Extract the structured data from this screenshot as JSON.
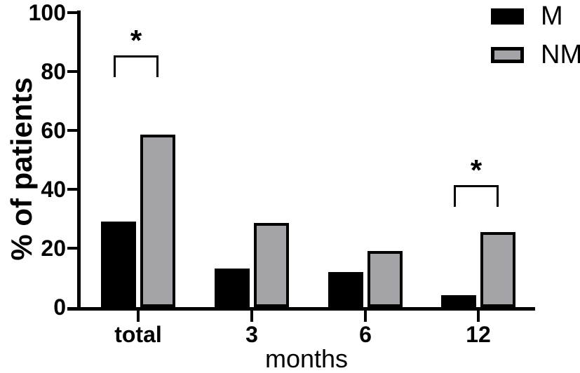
{
  "chart_data": {
    "type": "bar",
    "title": "",
    "categories": [
      "total",
      "3",
      "6",
      "12"
    ],
    "series": [
      {
        "name": "M",
        "color": "#000000",
        "values": [
          29,
          13,
          12,
          4
        ]
      },
      {
        "name": "NM",
        "color": "#a4a4a8",
        "values": [
          58.5,
          28.5,
          19,
          25.5
        ]
      }
    ],
    "xlabel": "months",
    "ylabel": "% of patients",
    "ylim": [
      0,
      100
    ],
    "yticks": [
      0,
      20,
      40,
      60,
      80,
      100
    ],
    "grid": false,
    "legend_position": "top-right",
    "bar_border_color": "#000000",
    "axis_color": "#000000",
    "significance": [
      {
        "category": "total",
        "label": "*",
        "bracket_top": 85.5,
        "bracket_bottom": 78
      },
      {
        "category": "12",
        "label": "*",
        "bracket_top": 41.5,
        "bracket_bottom": 34
      }
    ]
  }
}
